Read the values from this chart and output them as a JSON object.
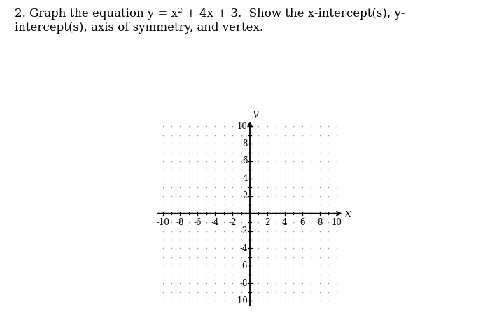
{
  "title_line1": "2. Graph the equation y = x",
  "title_sup": "2",
  "title_line1b": " + 4x + 3.  Show the x-intercept(s), y-",
  "title_line2": "intercept(s), axis of symmetry, and vertex.",
  "xmin": -10,
  "xmax": 10,
  "ymin": -10,
  "ymax": 10,
  "x_ticks_labeled": [
    -10,
    -8,
    -6,
    -4,
    -2,
    2,
    4,
    6,
    8,
    10
  ],
  "y_ticks_labeled": [
    -10,
    -8,
    -6,
    -4,
    -2,
    2,
    4,
    6,
    8,
    10
  ],
  "background_color": "#ffffff",
  "dot_color": "#999999",
  "axis_color": "#000000",
  "tick_color": "#000000",
  "xlabel": "x",
  "ylabel": "y",
  "title_fontsize": 12,
  "axis_label_fontsize": 11,
  "tick_fontsize": 8.5
}
